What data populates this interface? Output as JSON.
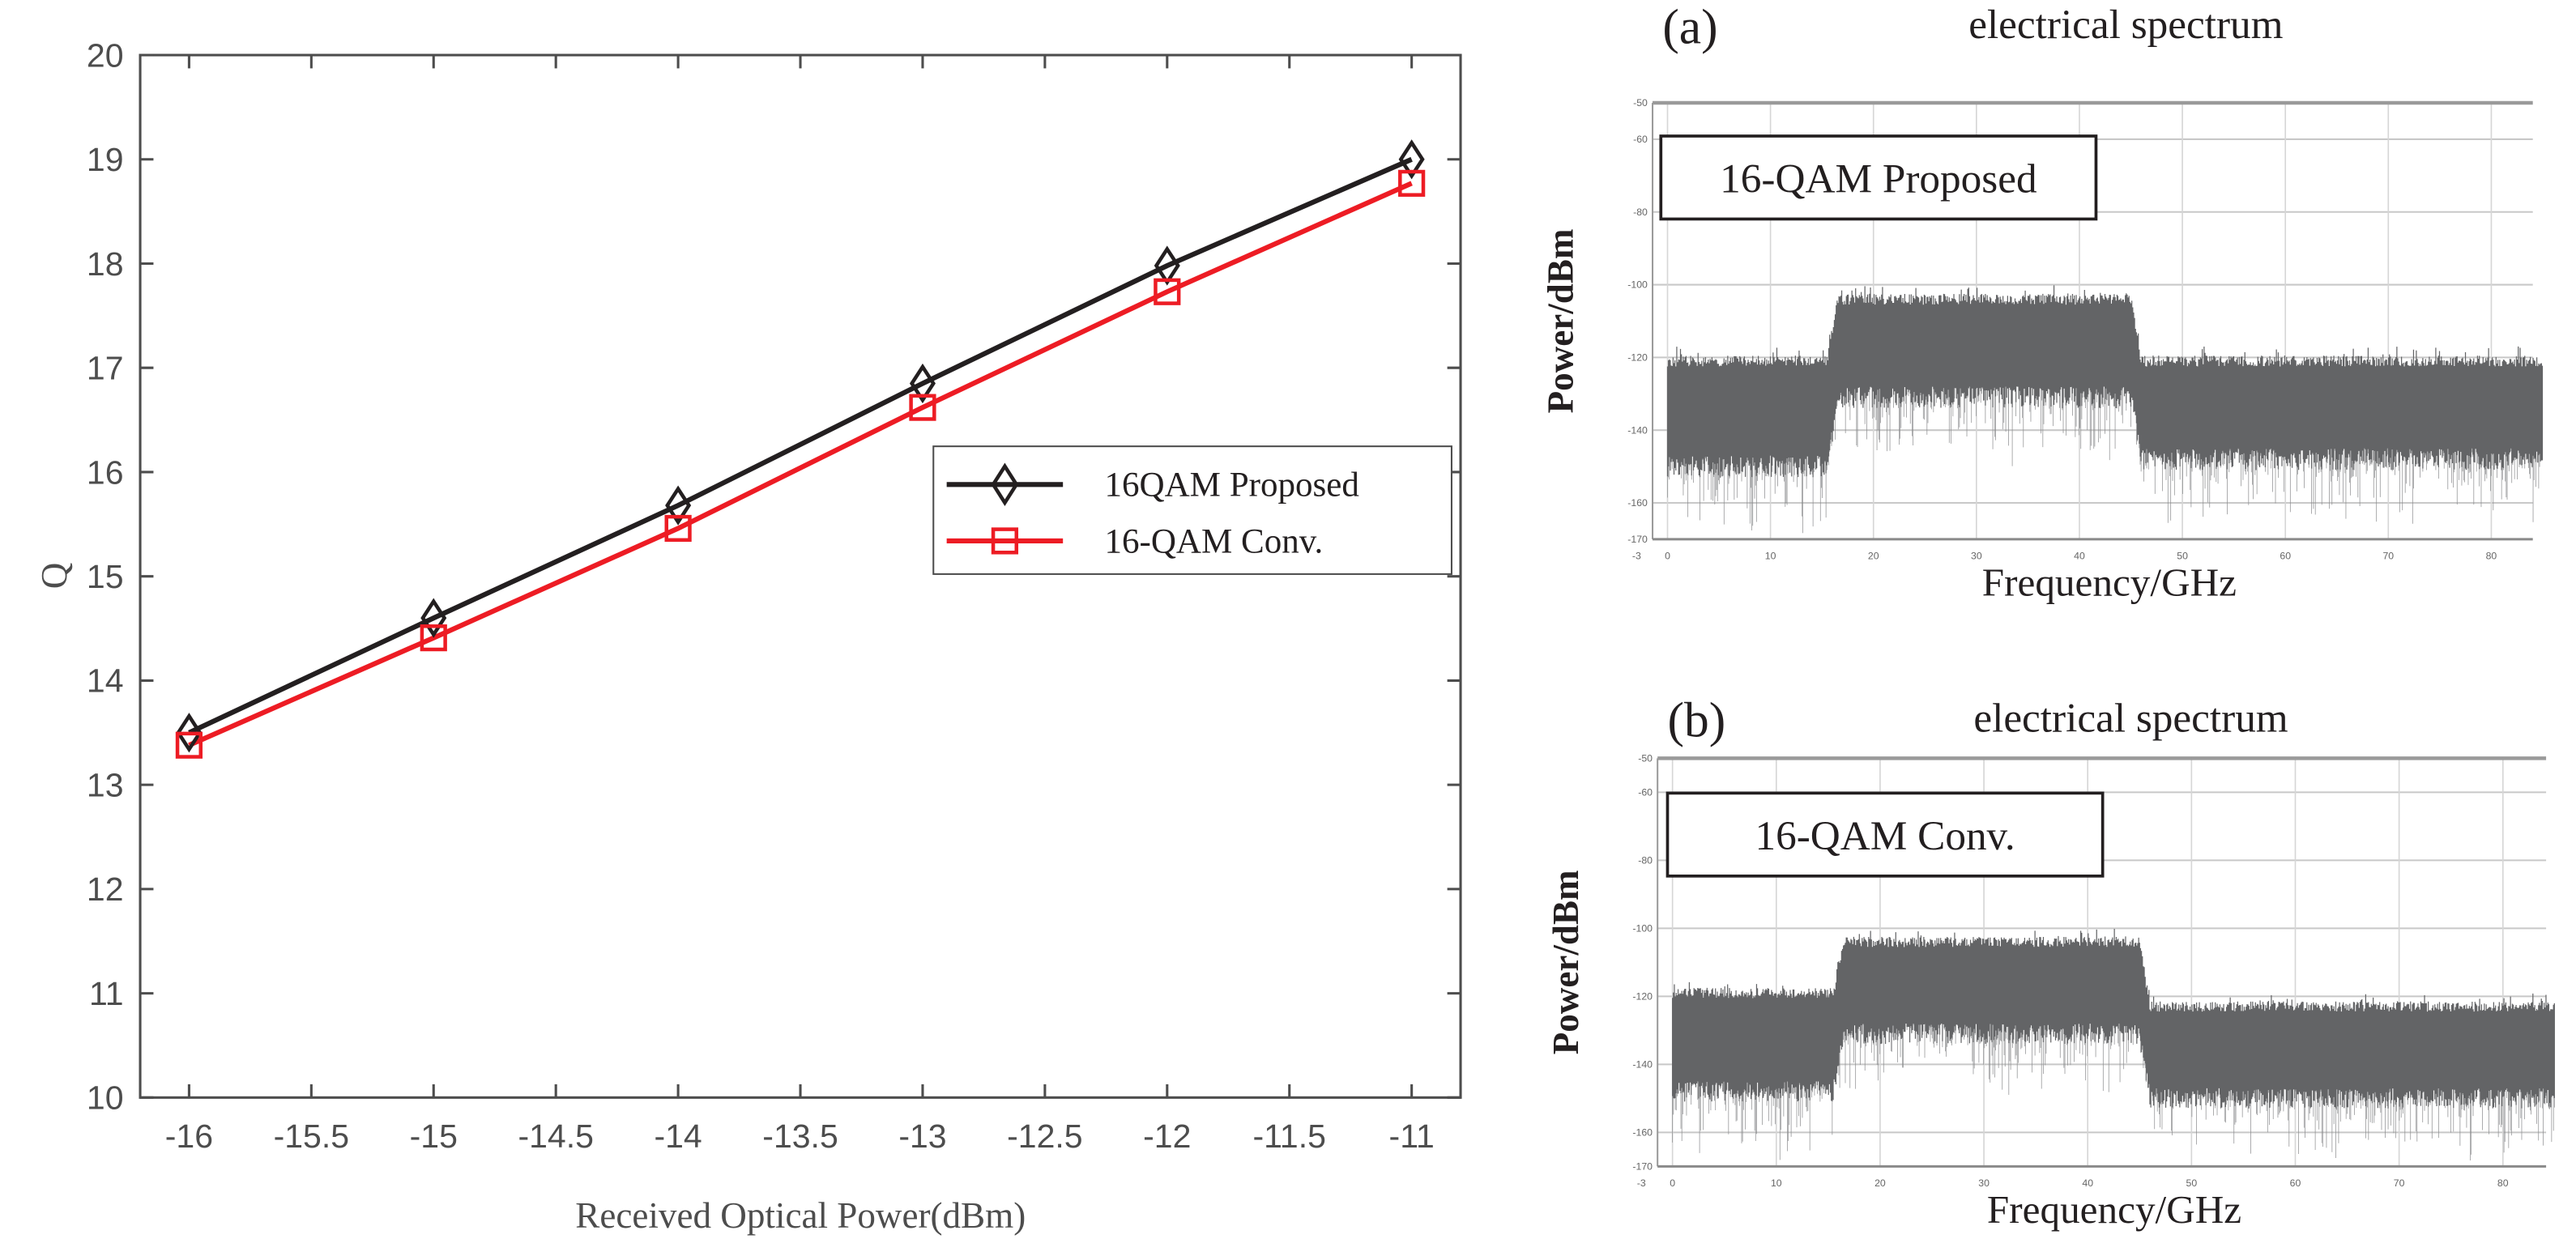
{
  "chart_data": [
    {
      "type": "line",
      "title": "",
      "xlabel": "Received Optical Power(dBm)",
      "ylabel": "Q",
      "xlim": [
        -16.2,
        -10.8
      ],
      "ylim": [
        10,
        20
      ],
      "xticks": [
        -16,
        -15.5,
        -15,
        -14.5,
        -14,
        -13.5,
        -13,
        -12.5,
        -12,
        -11.5,
        -11
      ],
      "yticks": [
        10,
        11,
        12,
        13,
        14,
        15,
        16,
        17,
        18,
        19,
        20
      ],
      "grid": false,
      "legend_position": "center-right",
      "x": [
        -16,
        -15,
        -14,
        -13,
        -12,
        -11
      ],
      "series": [
        {
          "name": "16QAM Proposed",
          "values": [
            13.5,
            14.6,
            15.68,
            16.85,
            17.98,
            19.0
          ],
          "color": "#231f20",
          "marker": "diamond"
        },
        {
          "name": "16-QAM Conv.",
          "values": [
            13.38,
            14.41,
            15.46,
            16.62,
            17.73,
            18.77
          ],
          "color": "#ed1c24",
          "marker": "square"
        }
      ]
    },
    {
      "type": "area",
      "panel_label": "(a)",
      "title": "electrical spectrum",
      "annotation": "16-QAM Proposed",
      "xlabel": "Frequency/GHz",
      "ylabel": "Power/dBm",
      "xlim": [
        -3,
        85
      ],
      "ylim": [
        -170,
        -50
      ],
      "xticks": [
        -3,
        0,
        10,
        20,
        30,
        40,
        50,
        60,
        70,
        80
      ],
      "yticks": [
        -50,
        -60,
        -80,
        -100,
        -120,
        -140,
        -160,
        -170
      ],
      "grid": true,
      "bands": [
        {
          "from": 0,
          "to": 15.5,
          "top": -121,
          "floor": -150,
          "min": -170
        },
        {
          "from": 16.5,
          "to": 45,
          "top": -104,
          "floor": -131,
          "min": -152
        },
        {
          "from": 46,
          "to": 85,
          "top": -121,
          "floor": -148,
          "min": -168
        }
      ]
    },
    {
      "type": "area",
      "panel_label": "(b)",
      "title": "electrical spectrum",
      "annotation": "16-QAM Conv.",
      "xlabel": "Frequency/GHz",
      "ylabel": "Power/dBm",
      "xlim": [
        -3,
        85
      ],
      "ylim": [
        -170,
        -50
      ],
      "xticks": [
        -3,
        0,
        10,
        20,
        30,
        40,
        50,
        60,
        70,
        80
      ],
      "yticks": [
        -50,
        -60,
        -80,
        -100,
        -120,
        -140,
        -160,
        -170
      ],
      "grid": true,
      "bands": [
        {
          "from": 0,
          "to": 15.5,
          "top": -119,
          "floor": -148,
          "min": -170
        },
        {
          "from": 16.5,
          "to": 45,
          "top": -104,
          "floor": -131,
          "min": -150
        },
        {
          "from": 46,
          "to": 85,
          "top": -123,
          "floor": -150,
          "min": -170
        }
      ],
      "spectrum_color": "#636466"
    }
  ]
}
